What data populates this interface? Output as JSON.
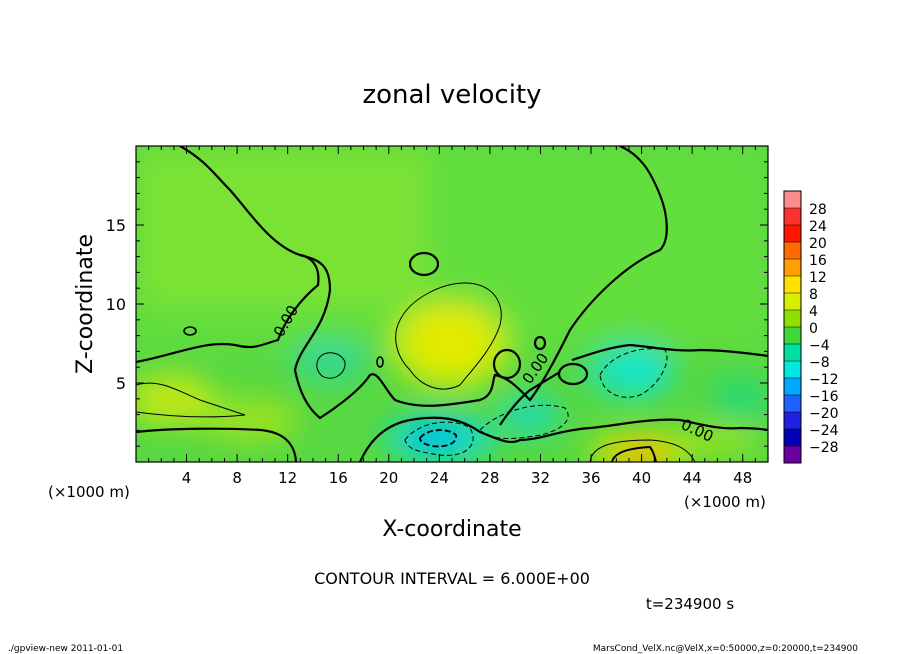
{
  "chart_data": {
    "type": "heatmap",
    "title": "zonal velocity",
    "xlabel": "X-coordinate",
    "ylabel": "Z-coordinate",
    "x_unit_note": "(×1000 m)",
    "z_unit_note": "(×1000 m)",
    "x_ticks": [
      4,
      8,
      12,
      16,
      20,
      24,
      28,
      32,
      36,
      40,
      44,
      48
    ],
    "y_ticks": [
      5,
      10,
      15
    ],
    "xlim": [
      0,
      50
    ],
    "ylim": [
      0,
      20
    ],
    "contour_interval_text": "CONTOUR INTERVAL = 6.000E+00",
    "time_text": "t=234900 s",
    "contour_labels": [
      "0.00",
      "0.00",
      "0.00"
    ],
    "colorbar": {
      "labels": [
        "28",
        "24",
        "20",
        "16",
        "12",
        "8",
        "4",
        "0",
        "−4",
        "−8",
        "−12",
        "−16",
        "−20",
        "−24",
        "−28"
      ],
      "colors": [
        "#ff8c8c",
        "#ff3030",
        "#ff1500",
        "#ff6a00",
        "#ffa000",
        "#ffe000",
        "#d8f000",
        "#8ee000",
        "#3ed838",
        "#00e0a0",
        "#00e8e0",
        "#00a8ff",
        "#2060ff",
        "#2020e0",
        "#0000b8",
        "#6a00a0"
      ]
    },
    "footer_left": "./gpview-new  2011-01-01",
    "footer_right": "MarsCond_VelX.nc@VelX,x=0:50000,z=0:20000,t=234900"
  }
}
